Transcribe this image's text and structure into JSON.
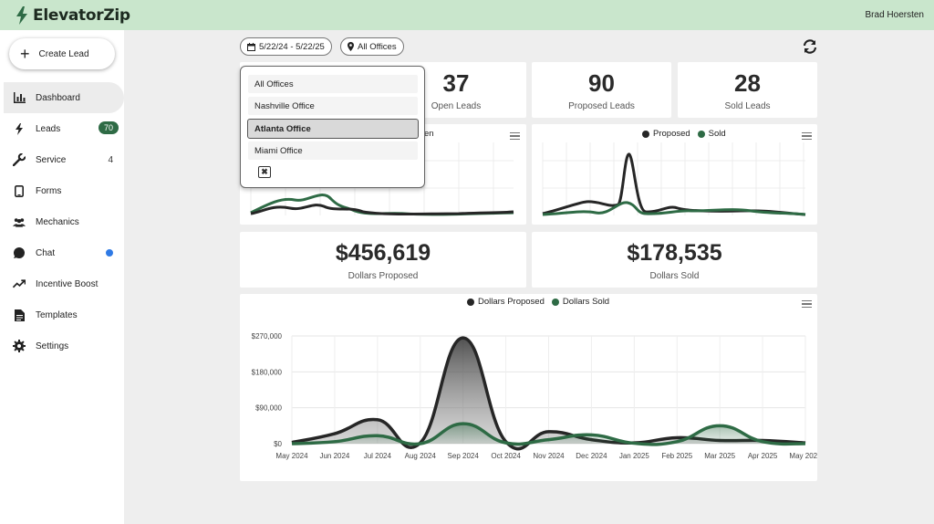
{
  "app": {
    "name": "ElevatorZip",
    "user": "Brad Hoersten"
  },
  "sidebar": {
    "create_label": "Create Lead",
    "items": [
      {
        "label": "Dashboard",
        "icon": "bar-chart-icon"
      },
      {
        "label": "Leads",
        "icon": "bolt-icon",
        "badge": "70"
      },
      {
        "label": "Service",
        "icon": "wrench-icon",
        "count": "4"
      },
      {
        "label": "Forms",
        "icon": "tablet-icon"
      },
      {
        "label": "Mechanics",
        "icon": "people-icon"
      },
      {
        "label": "Chat",
        "icon": "chat-icon"
      },
      {
        "label": "Incentive Boost",
        "icon": "trending-up-icon"
      },
      {
        "label": "Templates",
        "icon": "document-icon"
      },
      {
        "label": "Settings",
        "icon": "gear-icon"
      }
    ],
    "active": "Dashboard"
  },
  "filters": {
    "date_range": "5/22/24 - 5/22/25",
    "office": "All Offices"
  },
  "dropdown": {
    "options": [
      "All Offices",
      "Nashville Office",
      "Atlanta Office",
      "Miami Office"
    ],
    "highlighted": "Atlanta Office"
  },
  "stats": {
    "open": {
      "value": "37",
      "label": "Open Leads"
    },
    "proposed": {
      "value": "90",
      "label": "Proposed Leads"
    },
    "sold": {
      "value": "28",
      "label": "Sold Leads"
    },
    "dollars_proposed": {
      "value": "$456,619",
      "label": "Dollars Proposed"
    },
    "dollars_sold": {
      "value": "$178,535",
      "label": "Dollars Sold"
    }
  },
  "small_chart_left": {
    "legend_fragment": "en"
  },
  "small_chart_right": {
    "legend": [
      "Proposed",
      "Sold"
    ]
  },
  "colors": {
    "proposed": "#262626",
    "sold": "#2e6b45",
    "accent": "#c9e6cc",
    "badge": "#2e6b45",
    "dot": "#2f7ae5"
  },
  "chart_data": {
    "type": "area",
    "legend": [
      "Dollars Proposed",
      "Dollars Sold"
    ],
    "categories": [
      "May 2024",
      "Jun 2024",
      "Jul 2024",
      "Aug 2024",
      "Sep 2024",
      "Oct 2024",
      "Nov 2024",
      "Dec 2024",
      "Jan 2025",
      "Feb 2025",
      "Mar 2025",
      "Apr 2025",
      "May 2025"
    ],
    "series": [
      {
        "name": "Dollars Proposed",
        "values": [
          3000,
          25000,
          60000,
          2000,
          265000,
          5000,
          30000,
          10000,
          2000,
          15000,
          8000,
          8000,
          2000
        ]
      },
      {
        "name": "Dollars Sold",
        "values": [
          0,
          5000,
          20000,
          0,
          50000,
          2000,
          10000,
          22000,
          1000,
          5000,
          45000,
          5000,
          0
        ]
      }
    ],
    "yticks": [
      "$0",
      "$90,000",
      "$180,000",
      "$270,000"
    ],
    "ylim": [
      0,
      270000
    ]
  }
}
